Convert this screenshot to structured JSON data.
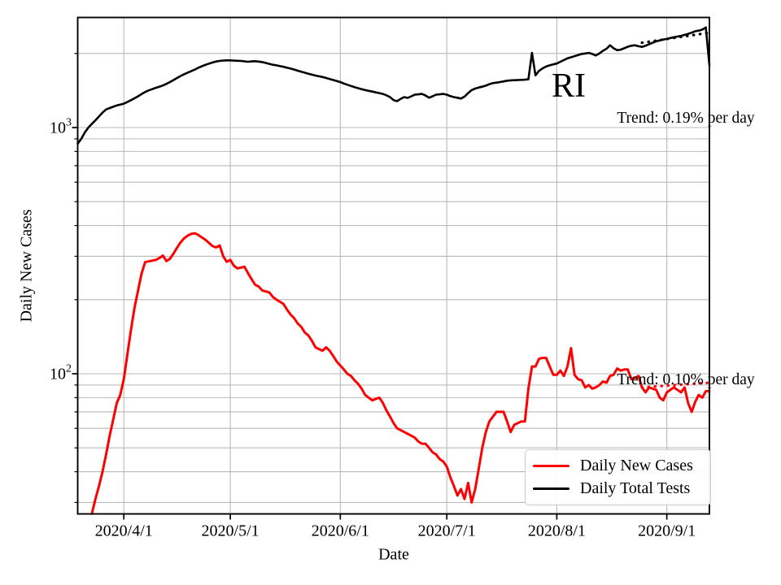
{
  "chart_data": {
    "type": "line",
    "title": "",
    "xlabel": "Date",
    "ylabel": "Daily New Cases",
    "grid": true,
    "x_axis": {
      "start_date": "2020/3/19",
      "ticks": [
        {
          "label": "2020/4/1",
          "day": 13
        },
        {
          "label": "2020/5/1",
          "day": 43
        },
        {
          "label": "2020/6/1",
          "day": 74
        },
        {
          "label": "2020/7/1",
          "day": 104
        },
        {
          "label": "2020/8/1",
          "day": 135
        },
        {
          "label": "2020/9/1",
          "day": 166
        }
      ],
      "range_days": [
        0,
        178
      ]
    },
    "y_axis": {
      "scale": "log",
      "major_ticks": [
        {
          "base": "10",
          "exp": "3",
          "value": 1000
        },
        {
          "base": "10",
          "exp": "2",
          "value": 100
        }
      ],
      "minor_tick_values": [
        2000,
        900,
        800,
        700,
        600,
        500,
        400,
        300,
        200,
        90,
        80,
        70,
        60,
        50,
        40,
        30
      ],
      "range": [
        27,
        2800
      ]
    },
    "annotations": {
      "state": "RI",
      "tests_trend": "Trend: 0.19% per day",
      "cases_trend": "Trend: 0.10% per day"
    },
    "legend": {
      "position": "lower right",
      "entries": [
        {
          "label": "Daily New Cases",
          "color": "#ff0000",
          "thickness": 3
        },
        {
          "label": "Daily Total Tests",
          "color": "#000000",
          "thickness": 2.6
        }
      ]
    },
    "series": [
      {
        "name": "Daily New Cases",
        "color": "#ff0000",
        "width": 3,
        "start_day": 4,
        "values": [
          27,
          31,
          35,
          40,
          47,
          56,
          65,
          76,
          82,
          95,
          120,
          150,
          185,
          218,
          255,
          284,
          286,
          288,
          290,
          295,
          302,
          287,
          293,
          308,
          325,
          342,
          355,
          364,
          370,
          372,
          366,
          358,
          350,
          340,
          330,
          326,
          332,
          300,
          285,
          290,
          275,
          268,
          270,
          272,
          256,
          242,
          230,
          226,
          218,
          216,
          214,
          205,
          200,
          196,
          192,
          182,
          174,
          168,
          160,
          155,
          147,
          143,
          136,
          128,
          126,
          124,
          128,
          124,
          118,
          112,
          108,
          104,
          100,
          98,
          94,
          91,
          87,
          82,
          80,
          78,
          79,
          80,
          76,
          71,
          67,
          63,
          60,
          59,
          58,
          57,
          56,
          55,
          53,
          52,
          52,
          50,
          48,
          47,
          45,
          44,
          42,
          38,
          35,
          32,
          34,
          31,
          36,
          30,
          34,
          41,
          50,
          58,
          64,
          67,
          70,
          70,
          70,
          64,
          58,
          62,
          63,
          64,
          64,
          87,
          107,
          107,
          115,
          116,
          116,
          107,
          99,
          99,
          103,
          98,
          107,
          127,
          99,
          95,
          94,
          88,
          90,
          87,
          88,
          90,
          93,
          92,
          98,
          99,
          105,
          103,
          104,
          104,
          95,
          96,
          98,
          88,
          84,
          88,
          87,
          86,
          80,
          78,
          84,
          86,
          88,
          86,
          84,
          88,
          76,
          70,
          77,
          82,
          80,
          85,
          85
        ]
      },
      {
        "name": "Daily Total Tests",
        "color": "#000000",
        "width": 2.6,
        "start_day": 0,
        "values": [
          860,
          900,
          955,
          1000,
          1035,
          1070,
          1110,
          1150,
          1185,
          1200,
          1215,
          1230,
          1240,
          1250,
          1270,
          1292,
          1315,
          1340,
          1368,
          1395,
          1415,
          1432,
          1450,
          1465,
          1482,
          1505,
          1530,
          1560,
          1590,
          1620,
          1648,
          1672,
          1695,
          1720,
          1750,
          1775,
          1798,
          1818,
          1838,
          1855,
          1865,
          1872,
          1875,
          1875,
          1870,
          1868,
          1865,
          1858,
          1850,
          1856,
          1860,
          1854,
          1845,
          1830,
          1815,
          1800,
          1790,
          1776,
          1765,
          1750,
          1736,
          1720,
          1702,
          1686,
          1670,
          1655,
          1640,
          1626,
          1615,
          1604,
          1590,
          1575,
          1560,
          1546,
          1530,
          1510,
          1492,
          1476,
          1460,
          1446,
          1432,
          1420,
          1410,
          1400,
          1390,
          1380,
          1370,
          1352,
          1330,
          1292,
          1280,
          1308,
          1330,
          1320,
          1340,
          1360,
          1365,
          1370,
          1350,
          1322,
          1340,
          1360,
          1365,
          1370,
          1360,
          1342,
          1330,
          1322,
          1312,
          1336,
          1380,
          1420,
          1440,
          1455,
          1466,
          1480,
          1500,
          1515,
          1522,
          1530,
          1540,
          1550,
          1555,
          1558,
          1560,
          1562,
          1565,
          1570,
          2010,
          1630,
          1700,
          1740,
          1770,
          1790,
          1806,
          1820,
          1850,
          1880,
          1910,
          1930,
          1950,
          1970,
          1990,
          2000,
          2010,
          1990,
          1962,
          2000,
          2050,
          2090,
          2160,
          2100,
          2062,
          2072,
          2100,
          2130,
          2150,
          2160,
          2140,
          2126,
          2150,
          2180,
          2210,
          2240,
          2260,
          2278,
          2292,
          2310,
          2328,
          2342,
          2356,
          2380,
          2402,
          2430,
          2462,
          2475,
          2500,
          2550,
          1790
        ]
      }
    ],
    "trend_lines": [
      {
        "name": "tests-trend",
        "color": "#000000",
        "style": "dotted",
        "points": [
          [
            159,
            2210
          ],
          [
            178,
            2430
          ]
        ]
      },
      {
        "name": "cases-trend",
        "color": "#ff0000",
        "style": "dotted",
        "points": [
          [
            159,
            88
          ],
          [
            178,
            92
          ]
        ]
      }
    ]
  }
}
